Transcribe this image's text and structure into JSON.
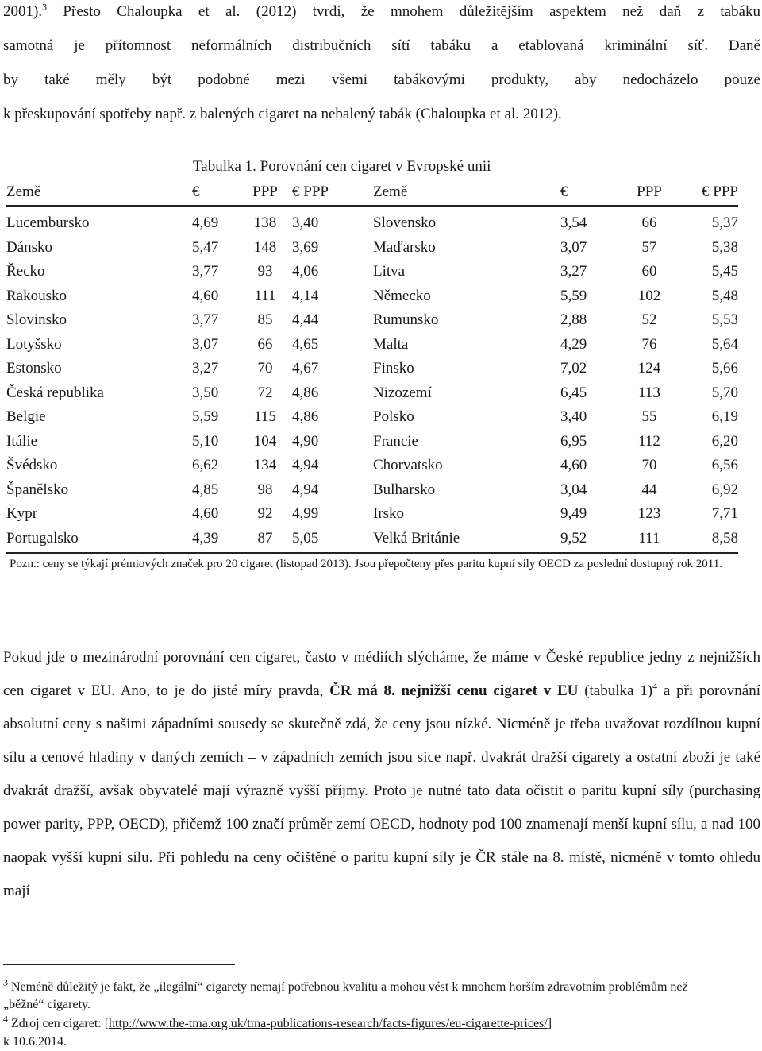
{
  "intro": {
    "line1_a": "2001).",
    "line1_sup": "3",
    "line1_b": " Přesto Chaloupka et al. (2012) tvrdí, že mnohem důležitějším aspektem než daň z tabáku",
    "line2": "samotná je přítomnost neformálních distribučních sítí tabáku a etablovaná kriminální síť. Daně",
    "line3": "by také měly být podobné mezi všemi tabákovými produkty, aby nedocházelo pouze",
    "line4": "k přeskupování spotřeby např. z balených cigaret na nebalený tabák (Chaloupka et al. 2012)."
  },
  "table": {
    "caption": "Tabulka 1. Porovnání cen cigaret v Evropské unii",
    "headers": [
      "Země",
      "€",
      "PPP",
      "€ PPP",
      "Země",
      "€",
      "PPP",
      "€ PPP"
    ],
    "rows": [
      [
        "Lucembursko",
        "4,69",
        "138",
        "3,40",
        "Slovensko",
        "3,54",
        "66",
        "5,37"
      ],
      [
        "Dánsko",
        "5,47",
        "148",
        "3,69",
        "Maďarsko",
        "3,07",
        "57",
        "5,38"
      ],
      [
        "Řecko",
        "3,77",
        "93",
        "4,06",
        "Litva",
        "3,27",
        "60",
        "5,45"
      ],
      [
        "Rakousko",
        "4,60",
        "111",
        "4,14",
        "Německo",
        "5,59",
        "102",
        "5,48"
      ],
      [
        "Slovinsko",
        "3,77",
        "85",
        "4,44",
        "Rumunsko",
        "2,88",
        "52",
        "5,53"
      ],
      [
        "Lotyšsko",
        "3,07",
        "66",
        "4,65",
        "Malta",
        "4,29",
        "76",
        "5,64"
      ],
      [
        "Estonsko",
        "3,27",
        "70",
        "4,67",
        "Finsko",
        "7,02",
        "124",
        "5,66"
      ],
      [
        "Česká republika",
        "3,50",
        "72",
        "4,86",
        "Nizozemí",
        "6,45",
        "113",
        "5,70"
      ],
      [
        "Belgie",
        "5,59",
        "115",
        "4,86",
        "Polsko",
        "3,40",
        "55",
        "6,19"
      ],
      [
        "Itálie",
        "5,10",
        "104",
        "4,90",
        "Francie",
        "6,95",
        "112",
        "6,20"
      ],
      [
        "Švédsko",
        "6,62",
        "134",
        "4,94",
        "Chorvatsko",
        "4,60",
        "70",
        "6,56"
      ],
      [
        "Španělsko",
        "4,85",
        "98",
        "4,94",
        "Bulharsko",
        "3,04",
        "44",
        "6,92"
      ],
      [
        "Kypr",
        "4,60",
        "92",
        "4,99",
        "Irsko",
        "9,49",
        "123",
        "7,71"
      ],
      [
        "Portugalsko",
        "4,39",
        "87",
        "5,05",
        "Velká Británie",
        "9,52",
        "111",
        "8,58"
      ]
    ],
    "note": "Pozn.: ceny se týkají prémiových značek pro 20 cigaret (listopad 2013). Jsou přepočteny přes paritu kupní síly OECD za poslední dostupný rok 2011."
  },
  "body": {
    "t1": "Pokud jde o mezinárodní porovnání cen cigaret, často v médiích slýcháme, že máme v České republice jedny z nejnižších cen cigaret v EU. Ano, to je do jisté míry pravda, ",
    "b1": "ČR má 8. nejnižší cenu cigaret v EU",
    "t2": " (tabulka 1)",
    "sup": "4",
    "t3": " a při porovnání absolutní ceny s našimi západními sousedy se skutečně zdá, že ceny jsou nízké. Nicméně je třeba uvažovat rozdílnou kupní sílu a cenové hladiny v daných zemích – v západních zemích jsou sice např. dvakrát dražší cigarety a ostatní zboží je také dvakrát dražší, avšak obyvatelé mají výrazně vyšší příjmy. Proto je nutné tato data očistit o paritu kupní síly (purchasing power parity, PPP, OECD), přičemž 100 značí průměr zemí OECD, hodnoty pod 100 znamenají menší kupní sílu, a nad 100 naopak vyšší kupní sílu. Při pohledu na ceny očištěné o paritu kupní síly je ČR stále na 8. místě, nicméně v tomto ohledu mají"
  },
  "footnotes": {
    "fn3_num": "3",
    "fn3_text": " Neméně důležitý je fakt, že „ilegální“ cigarety nemají potřebnou kvalitu a mohou vést k mnohem horším zdravotním problémům než „běžné“ cigarety.",
    "fn4_num": "4",
    "fn4_text_a": " Zdroj cen cigaret: [",
    "fn4_link": "http://www.the-tma.org.uk/tma-publications-research/facts-figures/eu-cigarette-prices/",
    "fn4_text_b": "]",
    "fn4_date": "k 10.6.2014."
  }
}
